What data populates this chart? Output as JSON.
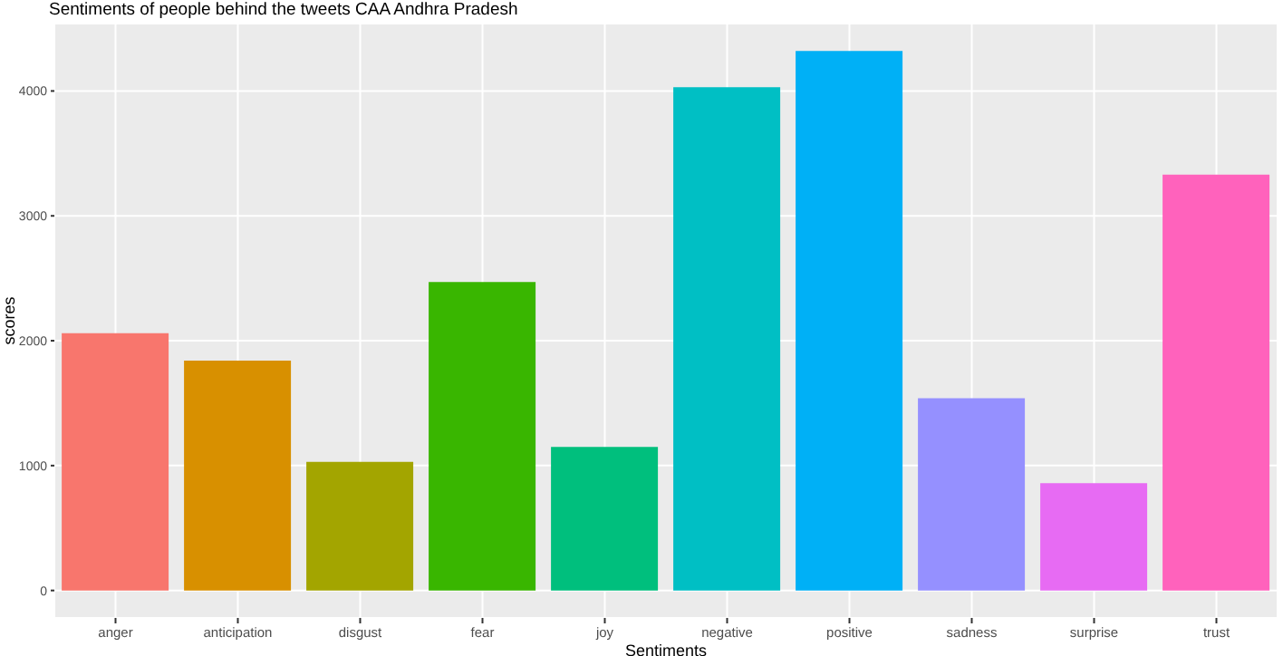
{
  "chart_data": {
    "type": "bar",
    "title": "Sentiments of people behind the tweets CAA Andhra Pradesh",
    "xlabel": "Sentiments",
    "ylabel": "scores",
    "categories": [
      "anger",
      "anticipation",
      "disgust",
      "fear",
      "joy",
      "negative",
      "positive",
      "sadness",
      "surprise",
      "trust"
    ],
    "values": [
      2060,
      1840,
      1030,
      2470,
      1150,
      4030,
      4320,
      1540,
      860,
      3330
    ],
    "colors": [
      "#f8766d",
      "#d89000",
      "#a3a500",
      "#39b600",
      "#00bf7d",
      "#00bfc4",
      "#00b0f6",
      "#9590ff",
      "#e76bf3",
      "#ff62bc"
    ],
    "ylim": [
      -220,
      4540
    ],
    "yticks": [
      0,
      1000,
      2000,
      3000,
      4000
    ],
    "grid": true,
    "legend": false
  }
}
